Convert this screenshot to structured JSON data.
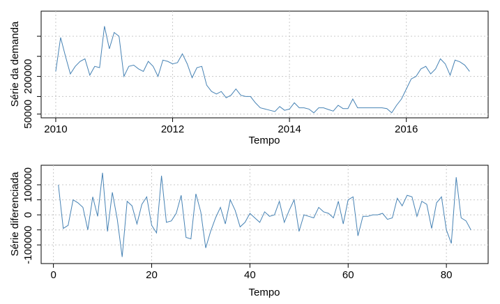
{
  "chart_data": [
    {
      "type": "line",
      "xlabel": "Tempo",
      "ylabel": "Série da demanda",
      "xlim": [
        2009.75,
        2017.4
      ],
      "ylim": [
        35000,
        460000
      ],
      "xticks": [
        2010,
        2012,
        2014,
        2016
      ],
      "xtick_labels": [
        "2010",
        "2012",
        "2014",
        "2016"
      ],
      "yticks": [
        50000,
        120000,
        200000,
        280000,
        360000
      ],
      "ytick_labels": [
        "50000",
        "",
        "200000",
        "",
        ""
      ],
      "grid": true,
      "x_start": 2010,
      "x_step": 0.08333,
      "series": [
        {
          "color": "#4682b4",
          "values": [
            220000,
            355000,
            280000,
            210000,
            240000,
            260000,
            270000,
            205000,
            240000,
            235000,
            400000,
            310000,
            375000,
            360000,
            200000,
            240000,
            245000,
            230000,
            220000,
            260000,
            240000,
            200000,
            265000,
            260000,
            250000,
            255000,
            290000,
            250000,
            195000,
            235000,
            240000,
            165000,
            140000,
            130000,
            140000,
            115000,
            125000,
            150000,
            125000,
            120000,
            120000,
            95000,
            75000,
            70000,
            65000,
            60000,
            80000,
            65000,
            70000,
            95000,
            75000,
            75000,
            70000,
            55000,
            75000,
            75000,
            68000,
            62000,
            85000,
            72000,
            72000,
            110000,
            75000,
            75000,
            75000,
            75000,
            75000,
            75000,
            72000,
            55000,
            85000,
            110000,
            150000,
            190000,
            200000,
            230000,
            240000,
            210000,
            230000,
            270000,
            250000,
            205000,
            265000,
            258000,
            245000,
            220000
          ]
        }
      ]
    },
    {
      "type": "line",
      "xlabel": "Tempo",
      "ylabel": "Série diferenciada",
      "xlim": [
        -2.5,
        88.5
      ],
      "ylim": [
        -162000,
        165000
      ],
      "xticks": [
        0,
        20,
        40,
        60,
        80
      ],
      "xtick_labels": [
        "0",
        "20",
        "40",
        "60",
        "80"
      ],
      "yticks": [
        -100000,
        -50000,
        0,
        50000,
        100000
      ],
      "ytick_labels": [
        "-100000",
        "",
        "0",
        "",
        "100000"
      ],
      "grid": true,
      "x_start": 1,
      "x_step": 1,
      "series": [
        {
          "color": "#4682b4",
          "values": [
            100000,
            -45000,
            -35000,
            50000,
            40000,
            25000,
            -50000,
            60000,
            -5000,
            140000,
            -55000,
            75000,
            -15000,
            -140000,
            45000,
            30000,
            -30000,
            35000,
            60000,
            -35000,
            -60000,
            130000,
            -25000,
            -20000,
            5000,
            65000,
            -75000,
            -80000,
            70000,
            10000,
            -110000,
            -55000,
            -10000,
            25000,
            -30000,
            50000,
            15000,
            -40000,
            -25000,
            5000,
            -10000,
            -25000,
            10000,
            -5000,
            0,
            45000,
            -25000,
            15000,
            50000,
            -55000,
            0,
            -5000,
            -10000,
            25000,
            10000,
            5000,
            -10000,
            45000,
            -30000,
            50000,
            60000,
            -70000,
            -5000,
            -5000,
            0,
            0,
            5000,
            -15000,
            -10000,
            55000,
            30000,
            65000,
            60000,
            -5000,
            45000,
            35000,
            -45000,
            40000,
            60000,
            -50000,
            -95000,
            125000,
            -10000,
            -20000,
            -50000
          ]
        }
      ]
    }
  ]
}
